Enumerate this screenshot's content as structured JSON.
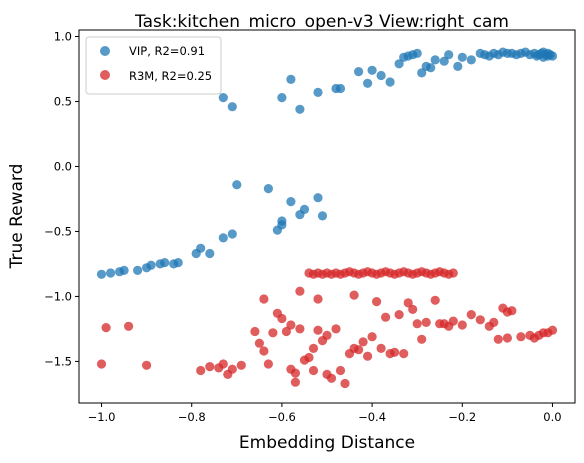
{
  "chart_data": {
    "type": "scatter",
    "title": "Task:kitchen_micro_open-v3 View:right_cam",
    "xlabel": "Embedding Distance",
    "ylabel": "True Reward",
    "xlim": [
      -1.05,
      0.05
    ],
    "ylim": [
      -1.82,
      1.05
    ],
    "xticks": [
      -1.0,
      -0.8,
      -0.6,
      -0.4,
      -0.2,
      0.0
    ],
    "xtick_labels": [
      "−1.0",
      "−0.8",
      "−0.6",
      "−0.4",
      "−0.2",
      "0.0"
    ],
    "yticks": [
      1.0,
      0.5,
      0.0,
      -0.5,
      -1.0,
      -1.5
    ],
    "ytick_labels": [
      "1.0",
      "0.5",
      "0.0",
      "−0.5",
      "−1.0",
      "−1.5"
    ],
    "grid": false,
    "legend_position": "top-left",
    "series": [
      {
        "name": "VIP, R2=0.91",
        "color": "#1f77b4",
        "points": [
          [
            -1.0,
            -0.83
          ],
          [
            -0.98,
            -0.82
          ],
          [
            -0.96,
            -0.81
          ],
          [
            -0.95,
            -0.8
          ],
          [
            -0.92,
            -0.8
          ],
          [
            -0.9,
            -0.78
          ],
          [
            -0.89,
            -0.76
          ],
          [
            -0.87,
            -0.75
          ],
          [
            -0.86,
            -0.74
          ],
          [
            -0.84,
            -0.75
          ],
          [
            -0.83,
            -0.74
          ],
          [
            -0.79,
            -0.67
          ],
          [
            -0.78,
            -0.63
          ],
          [
            -0.76,
            -0.67
          ],
          [
            -0.73,
            -0.55
          ],
          [
            -0.71,
            -0.52
          ],
          [
            -0.7,
            -0.14
          ],
          [
            -0.63,
            -0.17
          ],
          [
            -0.61,
            -0.49
          ],
          [
            -0.6,
            -0.45
          ],
          [
            -0.6,
            -0.42
          ],
          [
            -0.58,
            -0.27
          ],
          [
            -0.56,
            -0.37
          ],
          [
            -0.55,
            -0.33
          ],
          [
            -0.52,
            -0.24
          ],
          [
            -0.51,
            -0.38
          ],
          [
            -0.73,
            0.53
          ],
          [
            -0.71,
            0.46
          ],
          [
            -0.6,
            0.53
          ],
          [
            -0.58,
            0.67
          ],
          [
            -0.56,
            0.44
          ],
          [
            -0.52,
            0.57
          ],
          [
            -0.48,
            0.6
          ],
          [
            -0.47,
            0.6
          ],
          [
            -0.43,
            0.73
          ],
          [
            -0.41,
            0.64
          ],
          [
            -0.4,
            0.74
          ],
          [
            -0.38,
            0.7
          ],
          [
            -0.36,
            0.65
          ],
          [
            -0.34,
            0.79
          ],
          [
            -0.33,
            0.84
          ],
          [
            -0.32,
            0.85
          ],
          [
            -0.31,
            0.86
          ],
          [
            -0.3,
            0.87
          ],
          [
            -0.29,
            0.72
          ],
          [
            -0.28,
            0.77
          ],
          [
            -0.27,
            0.76
          ],
          [
            -0.26,
            0.82
          ],
          [
            -0.24,
            0.81
          ],
          [
            -0.23,
            0.86
          ],
          [
            -0.21,
            0.77
          ],
          [
            -0.2,
            0.84
          ],
          [
            -0.18,
            0.82
          ],
          [
            -0.16,
            0.87
          ],
          [
            -0.15,
            0.86
          ],
          [
            -0.14,
            0.85
          ],
          [
            -0.13,
            0.87
          ],
          [
            -0.12,
            0.86
          ],
          [
            -0.11,
            0.88
          ],
          [
            -0.1,
            0.87
          ],
          [
            -0.09,
            0.87
          ],
          [
            -0.08,
            0.86
          ],
          [
            -0.07,
            0.87
          ],
          [
            -0.06,
            0.88
          ],
          [
            -0.05,
            0.86
          ],
          [
            -0.04,
            0.87
          ],
          [
            -0.035,
            0.85
          ],
          [
            -0.03,
            0.86
          ],
          [
            -0.025,
            0.87
          ],
          [
            -0.02,
            0.84
          ],
          [
            -0.015,
            0.86
          ],
          [
            -0.01,
            0.87
          ],
          [
            -0.005,
            0.86
          ],
          [
            0.0,
            0.85
          ],
          [
            -0.02,
            0.88
          ],
          [
            -0.01,
            0.85
          ]
        ]
      },
      {
        "name": "R3M, R2=0.25",
        "color": "#d62728",
        "points": [
          [
            -1.0,
            -1.52
          ],
          [
            -0.99,
            -1.24
          ],
          [
            -0.94,
            -1.23
          ],
          [
            -0.9,
            -1.53
          ],
          [
            -0.78,
            -1.57
          ],
          [
            -0.76,
            -1.54
          ],
          [
            -0.74,
            -1.55
          ],
          [
            -0.73,
            -1.52
          ],
          [
            -0.72,
            -1.6
          ],
          [
            -0.71,
            -1.56
          ],
          [
            -0.69,
            -1.53
          ],
          [
            -0.66,
            -1.27
          ],
          [
            -0.65,
            -1.36
          ],
          [
            -0.64,
            -1.02
          ],
          [
            -0.64,
            -1.42
          ],
          [
            -0.63,
            -1.52
          ],
          [
            -0.62,
            -1.28
          ],
          [
            -0.61,
            -1.13
          ],
          [
            -0.6,
            -1.17
          ],
          [
            -0.59,
            -1.27
          ],
          [
            -0.58,
            -1.22
          ],
          [
            -0.58,
            -1.56
          ],
          [
            -0.57,
            -1.59
          ],
          [
            -0.57,
            -1.66
          ],
          [
            -0.56,
            -1.25
          ],
          [
            -0.56,
            -0.96
          ],
          [
            -0.55,
            -1.49
          ],
          [
            -0.54,
            -1.47
          ],
          [
            -0.53,
            -1.4
          ],
          [
            -0.53,
            -1.57
          ],
          [
            -0.52,
            -1.26
          ],
          [
            -0.52,
            -1.02
          ],
          [
            -0.51,
            -1.34
          ],
          [
            -0.5,
            -1.3
          ],
          [
            -0.5,
            -1.6
          ],
          [
            -0.49,
            -1.63
          ],
          [
            -0.48,
            -1.25
          ],
          [
            -0.47,
            -1.57
          ],
          [
            -0.46,
            -1.67
          ],
          [
            -0.45,
            -1.44
          ],
          [
            -0.44,
            -1.4
          ],
          [
            -0.44,
            -0.99
          ],
          [
            -0.43,
            -1.41
          ],
          [
            -0.42,
            -1.35
          ],
          [
            -0.41,
            -1.46
          ],
          [
            -0.4,
            -1.31
          ],
          [
            -0.39,
            -1.04
          ],
          [
            -0.38,
            -1.4
          ],
          [
            -0.37,
            -1.16
          ],
          [
            -0.36,
            -1.44
          ],
          [
            -0.35,
            -1.43
          ],
          [
            -0.34,
            -1.14
          ],
          [
            -0.33,
            -1.44
          ],
          [
            -0.32,
            -1.05
          ],
          [
            -0.31,
            -1.1
          ],
          [
            -0.3,
            -1.21
          ],
          [
            -0.29,
            -1.33
          ],
          [
            -0.28,
            -1.2
          ],
          [
            -0.26,
            -1.03
          ],
          [
            -0.25,
            -1.21
          ],
          [
            -0.24,
            -1.21
          ],
          [
            -0.23,
            -1.23
          ],
          [
            -0.22,
            -1.19
          ],
          [
            -0.2,
            -1.22
          ],
          [
            -0.18,
            -1.14
          ],
          [
            -0.16,
            -1.18
          ],
          [
            -0.14,
            -1.23
          ],
          [
            -0.13,
            -1.2
          ],
          [
            -0.12,
            -1.33
          ],
          [
            -0.11,
            -1.09
          ],
          [
            -0.1,
            -1.12
          ],
          [
            -0.1,
            -1.32
          ],
          [
            -0.09,
            -1.11
          ],
          [
            -0.07,
            -1.31
          ],
          [
            -0.05,
            -1.3
          ],
          [
            -0.04,
            -1.32
          ],
          [
            -0.03,
            -1.3
          ],
          [
            -0.02,
            -1.28
          ],
          [
            -0.01,
            -1.28
          ],
          [
            0.0,
            -1.26
          ],
          [
            -0.54,
            -0.82
          ],
          [
            -0.53,
            -0.83
          ],
          [
            -0.52,
            -0.82
          ],
          [
            -0.51,
            -0.83
          ],
          [
            -0.5,
            -0.82
          ],
          [
            -0.49,
            -0.83
          ],
          [
            -0.48,
            -0.82
          ],
          [
            -0.47,
            -0.83
          ],
          [
            -0.46,
            -0.82
          ],
          [
            -0.45,
            -0.81
          ],
          [
            -0.44,
            -0.82
          ],
          [
            -0.43,
            -0.83
          ],
          [
            -0.42,
            -0.82
          ],
          [
            -0.41,
            -0.81
          ],
          [
            -0.4,
            -0.82
          ],
          [
            -0.39,
            -0.83
          ],
          [
            -0.38,
            -0.82
          ],
          [
            -0.37,
            -0.81
          ],
          [
            -0.36,
            -0.82
          ],
          [
            -0.35,
            -0.83
          ],
          [
            -0.34,
            -0.82
          ],
          [
            -0.33,
            -0.81
          ],
          [
            -0.32,
            -0.82
          ],
          [
            -0.31,
            -0.83
          ],
          [
            -0.3,
            -0.82
          ],
          [
            -0.29,
            -0.81
          ],
          [
            -0.28,
            -0.82
          ],
          [
            -0.27,
            -0.83
          ],
          [
            -0.26,
            -0.82
          ],
          [
            -0.25,
            -0.81
          ],
          [
            -0.24,
            -0.82
          ],
          [
            -0.23,
            -0.83
          ],
          [
            -0.22,
            -0.82
          ]
        ]
      }
    ]
  }
}
